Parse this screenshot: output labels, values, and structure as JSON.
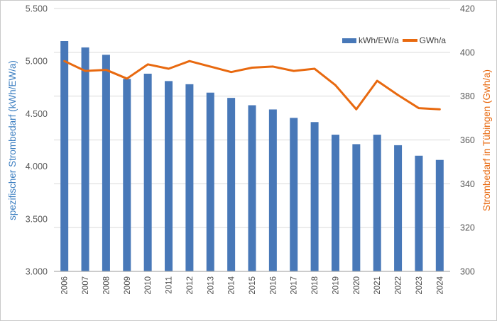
{
  "window": {
    "background": "#ffffff",
    "border_color": "#c9c9c9"
  },
  "chart_data": {
    "type": "combo-bar-line",
    "title": "",
    "categories": [
      "2006",
      "2007",
      "2008",
      "2009",
      "2010",
      "2011",
      "2012",
      "2013",
      "2014",
      "2015",
      "2016",
      "2017",
      "2018",
      "2019",
      "2020",
      "2021",
      "2022",
      "2023",
      "2024"
    ],
    "series": [
      {
        "name": "kWh/EW/a",
        "type": "bar",
        "axis": "left",
        "color": "#4878b8",
        "values": [
          5190,
          5130,
          5060,
          4830,
          4880,
          4810,
          4780,
          4700,
          4650,
          4580,
          4540,
          4460,
          4420,
          4300,
          4210,
          4300,
          4200,
          4100,
          4060
        ]
      },
      {
        "name": "GWh/a",
        "type": "line",
        "axis": "right",
        "color": "#e8690f",
        "values": [
          396,
          391.5,
          392,
          388,
          394.5,
          392.5,
          396,
          393.5,
          391,
          393,
          393.5,
          391.5,
          392.5,
          385,
          374,
          387,
          380.5,
          374.5,
          374
        ]
      }
    ],
    "left_axis": {
      "title": "spezifischer Strombedarf (kWh/EW/a)",
      "min": 3000,
      "max": 5500,
      "tick_step": 500,
      "tick_labels": [
        "3.000",
        "3.500",
        "4.000",
        "4.500",
        "5.000",
        "5.500"
      ],
      "title_color": "#3d7fc1",
      "tick_color": "#595959"
    },
    "right_axis": {
      "title": "Strombedarf in Tübingen (Gwh/a)",
      "min": 300,
      "max": 420,
      "tick_step": 20,
      "tick_labels": [
        "300",
        "320",
        "340",
        "360",
        "380",
        "400",
        "420"
      ],
      "title_color": "#e8690f",
      "tick_color": "#595959"
    },
    "x_axis": {
      "tick_color": "#4d4d4d"
    },
    "legend": {
      "position": "top-right",
      "items": [
        {
          "label": "kWh/EW/a",
          "marker": "bar-swatch",
          "color": "#4878b8"
        },
        {
          "label": "GWh/a",
          "marker": "line-swatch",
          "color": "#e8690f"
        }
      ]
    },
    "grid": {
      "show": true,
      "gridlines_follow": "right",
      "color": "#d9d9d9",
      "axis_line_color": "#adadad"
    }
  }
}
